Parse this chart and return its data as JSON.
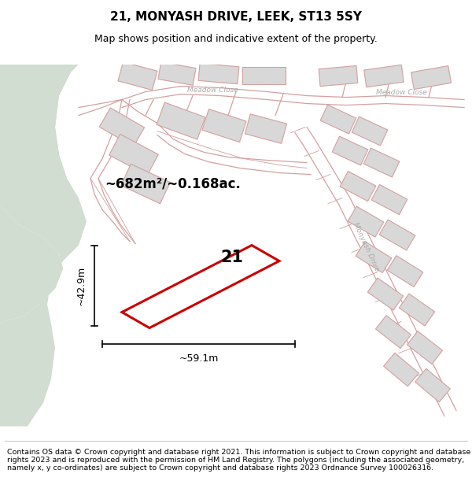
{
  "title": "21, MONYASH DRIVE, LEEK, ST13 5SY",
  "subtitle": "Map shows position and indicative extent of the property.",
  "footer": "Contains OS data © Crown copyright and database right 2021. This information is subject to Crown copyright and database rights 2023 and is reproduced with the permission of HM Land Registry. The polygons (including the associated geometry, namely x, y co-ordinates) are subject to Crown copyright and database rights 2023 Ordnance Survey 100026316.",
  "area_label": "~682m²/~0.168ac.",
  "width_label": "~59.1m",
  "height_label": "~42.9m",
  "plot_number": "21",
  "map_bg": "#f2eded",
  "plot_fill_color": "#ffffff",
  "plot_edge_color": "#cc0000",
  "road_line_color": "#d4a0a0",
  "green_color": "#d0ddd0",
  "building_color": "#d8d8d8",
  "street_label_color": "#aaaaaa",
  "title_fontsize": 11,
  "subtitle_fontsize": 9,
  "footer_fontsize": 6.8
}
